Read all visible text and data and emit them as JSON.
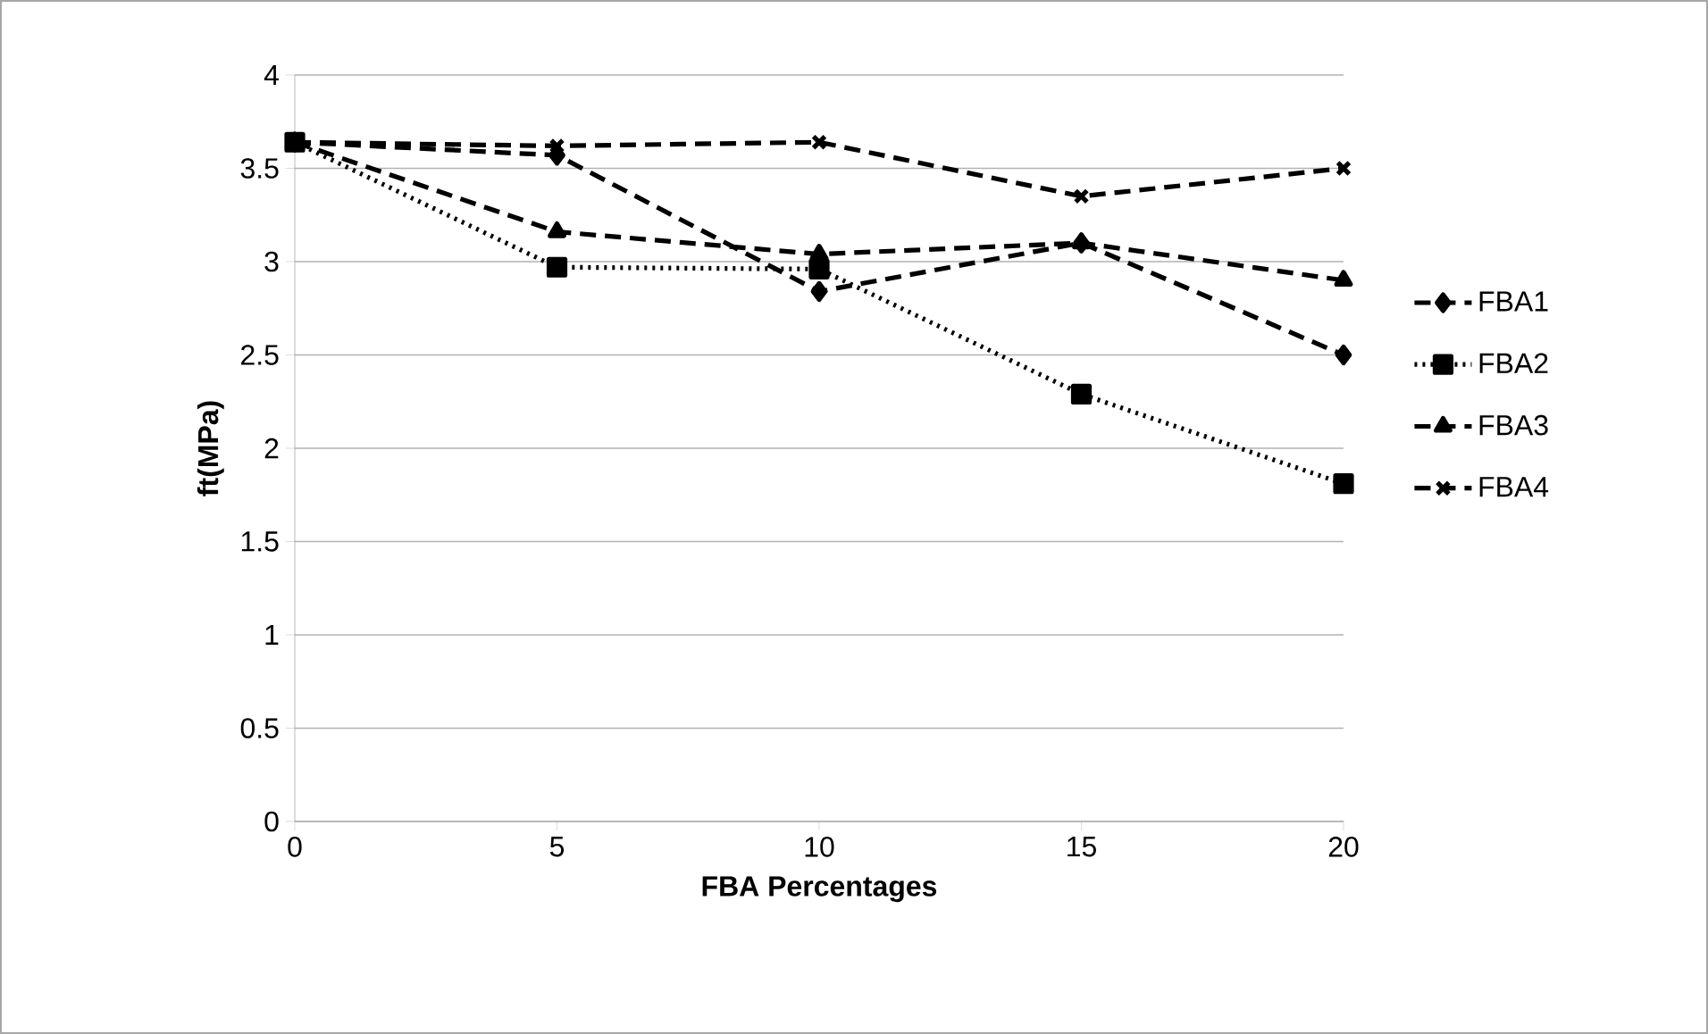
{
  "chart_data": {
    "type": "line",
    "xlabel": "FBA Percentages",
    "ylabel": "ft(MPa)",
    "x": [
      0,
      5,
      10,
      15,
      20
    ],
    "series": [
      {
        "name": "FBA1",
        "color": "#000000",
        "marker": "diamond",
        "line_style": "dashed",
        "values": [
          3.64,
          3.57,
          2.84,
          3.1,
          2.5
        ]
      },
      {
        "name": "FBA2",
        "color": "#000000",
        "marker": "square",
        "line_style": "dotted",
        "values": [
          3.64,
          2.97,
          2.96,
          2.29,
          1.81
        ]
      },
      {
        "name": "FBA3",
        "color": "#000000",
        "marker": "triangle",
        "line_style": "dashed",
        "values": [
          3.64,
          3.16,
          3.04,
          3.1,
          2.9
        ]
      },
      {
        "name": "FBA4",
        "color": "#000000",
        "marker": "cross",
        "line_style": "dashed",
        "values": [
          3.64,
          3.62,
          3.64,
          3.35,
          3.5
        ]
      }
    ],
    "xlim": [
      0,
      20
    ],
    "xticks": [
      0,
      5,
      10,
      15,
      20
    ],
    "ylim": [
      0,
      4
    ],
    "yticks": [
      0,
      0.5,
      1,
      1.5,
      2,
      2.5,
      3,
      3.5,
      4
    ],
    "grid": "y",
    "legend": "right"
  }
}
